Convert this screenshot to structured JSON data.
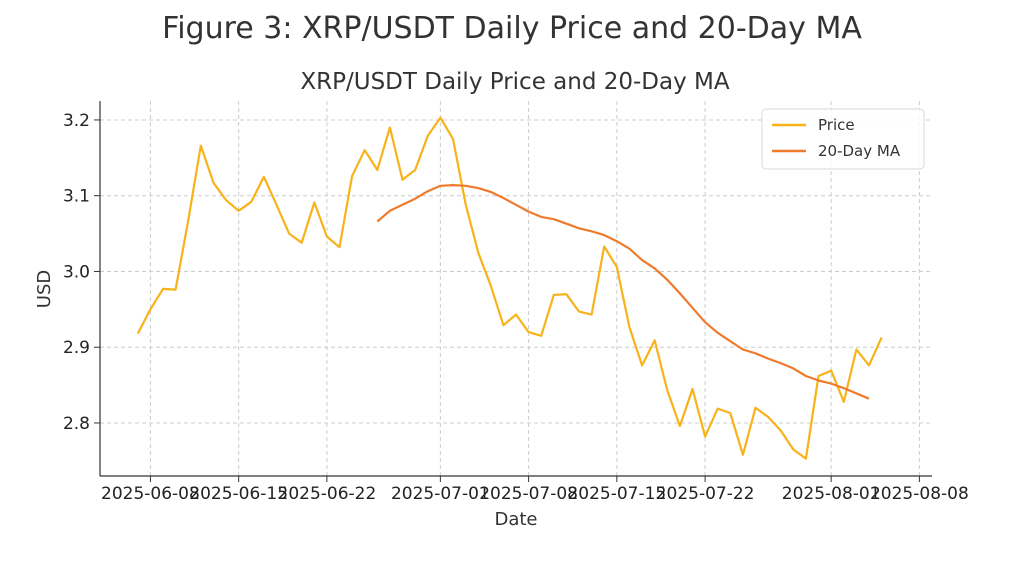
{
  "figure_title": "Figure 3: XRP/USDT Daily Price and 20-Day MA",
  "chart_data": {
    "type": "line",
    "title": "XRP/USDT Daily Price and 20-Day MA",
    "xlabel": "Date",
    "ylabel": "USD",
    "x_ticks": [
      "2025-06-08",
      "2025-06-15",
      "2025-06-22",
      "2025-07-01",
      "2025-07-08",
      "2025-07-15",
      "2025-07-22",
      "2025-08-01",
      "2025-08-08"
    ],
    "y_ticks": [
      "2.8",
      "2.9",
      "3.0",
      "3.1",
      "3.2"
    ],
    "ylim": [
      2.73,
      3.225
    ],
    "xlim": [
      "2025-06-04",
      "2025-08-09"
    ],
    "grid": true,
    "legend_position": "top-right",
    "colors": {
      "price": "#f8b21a",
      "ma": "#ef7a2c"
    },
    "dates": [
      "2025-06-07",
      "2025-06-08",
      "2025-06-09",
      "2025-06-10",
      "2025-06-11",
      "2025-06-12",
      "2025-06-13",
      "2025-06-14",
      "2025-06-15",
      "2025-06-16",
      "2025-06-17",
      "2025-06-18",
      "2025-06-19",
      "2025-06-20",
      "2025-06-21",
      "2025-06-22",
      "2025-06-23",
      "2025-06-24",
      "2025-06-25",
      "2025-06-26",
      "2025-06-27",
      "2025-06-28",
      "2025-06-29",
      "2025-06-30",
      "2025-07-01",
      "2025-07-02",
      "2025-07-03",
      "2025-07-04",
      "2025-07-05",
      "2025-07-06",
      "2025-07-07",
      "2025-07-08",
      "2025-07-09",
      "2025-07-10",
      "2025-07-11",
      "2025-07-12",
      "2025-07-13",
      "2025-07-14",
      "2025-07-15",
      "2025-07-16",
      "2025-07-17",
      "2025-07-18",
      "2025-07-19",
      "2025-07-20",
      "2025-07-21",
      "2025-07-22",
      "2025-07-23",
      "2025-07-24",
      "2025-07-25",
      "2025-07-26",
      "2025-07-27",
      "2025-07-28",
      "2025-07-29",
      "2025-07-30",
      "2025-07-31",
      "2025-08-01",
      "2025-08-02",
      "2025-08-03",
      "2025-08-04"
    ],
    "series": [
      {
        "name": "Price",
        "values": [
          2.918,
          2.95,
          2.977,
          2.976,
          3.067,
          3.166,
          3.117,
          3.094,
          3.08,
          3.092,
          3.125,
          3.088,
          3.05,
          3.038,
          3.091,
          3.046,
          3.032,
          3.126,
          3.16,
          3.134,
          3.19,
          3.121,
          3.134,
          3.179,
          3.203,
          3.175,
          3.089,
          3.025,
          2.981,
          2.929,
          2.943,
          2.92,
          2.915,
          2.969,
          2.97,
          2.947,
          2.943,
          3.033,
          3.006,
          2.926,
          2.876,
          2.909,
          2.843,
          2.796,
          2.845,
          2.782,
          2.819,
          2.813,
          2.758,
          2.82,
          2.808,
          2.79,
          2.765,
          2.753,
          2.862,
          2.869,
          2.828,
          2.897,
          2.876
        ]
      },
      {
        "name": "20-Day MA",
        "values": [
          null,
          null,
          null,
          null,
          null,
          null,
          null,
          null,
          null,
          null,
          null,
          null,
          null,
          null,
          null,
          null,
          null,
          null,
          null,
          3.066,
          3.08,
          3.088,
          3.096,
          3.106,
          3.113,
          3.114,
          3.113,
          3.11,
          3.105,
          3.097,
          3.088,
          3.079,
          3.072,
          3.069,
          3.063,
          3.057,
          3.053,
          3.048,
          3.04,
          3.03,
          3.015,
          3.004,
          2.989,
          2.971,
          2.952,
          2.933,
          2.919,
          2.908,
          2.897,
          2.892,
          2.885,
          2.879,
          2.872,
          2.862,
          2.856,
          2.852,
          2.846,
          2.839,
          2.832
        ]
      }
    ],
    "price_extra_last": 2.913
  }
}
